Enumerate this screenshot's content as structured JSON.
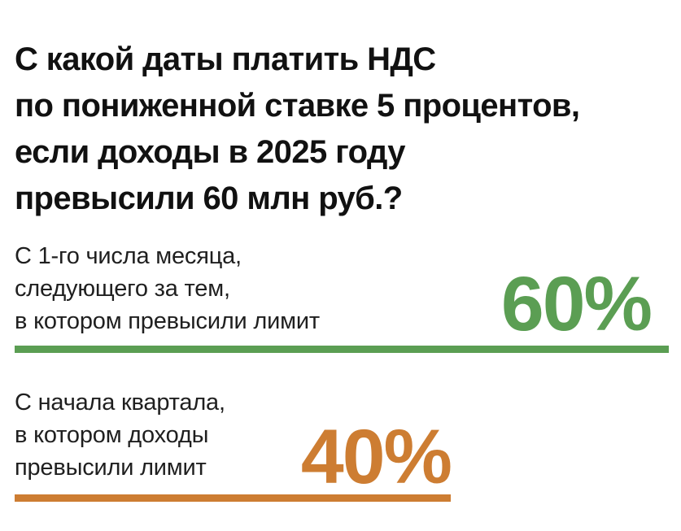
{
  "page": {
    "background": "#ffffff"
  },
  "title": {
    "lines": [
      "С какой даты платить НДС",
      "по пониженной ставке 5 процентов,",
      "если доходы в 2025 году",
      "превысили 60 млн руб.?"
    ],
    "color": "#111111"
  },
  "options": [
    {
      "lines": [
        "С 1-го числа месяца,",
        "следующего за тем,",
        "в котором превысили лимит"
      ],
      "value_label": "60%",
      "percent": 60,
      "accent_color": "#5b9e53"
    },
    {
      "lines": [
        "С начала квартала,",
        "в котором доходы",
        "превысили лимит"
      ],
      "value_label": "40%",
      "percent": 40,
      "accent_color": "#cd7d32"
    }
  ],
  "chart_data": {
    "type": "bar",
    "orientation": "horizontal",
    "title": "С какой даты платить НДС по пониженной ставке 5 процентов, если доходы в 2025 году превысили 60 млн руб.?",
    "categories": [
      "С 1-го числа месяца, следующего за тем, в котором превысили лимит",
      "С начала квартала, в котором доходы превысили лимит"
    ],
    "values": [
      60,
      40
    ],
    "unit": "%",
    "value_labels": [
      "60%",
      "40%"
    ],
    "series_colors": [
      "#5b9e53",
      "#cd7d32"
    ],
    "xlim": [
      0,
      60
    ],
    "grid": false,
    "legend_position": "none"
  }
}
